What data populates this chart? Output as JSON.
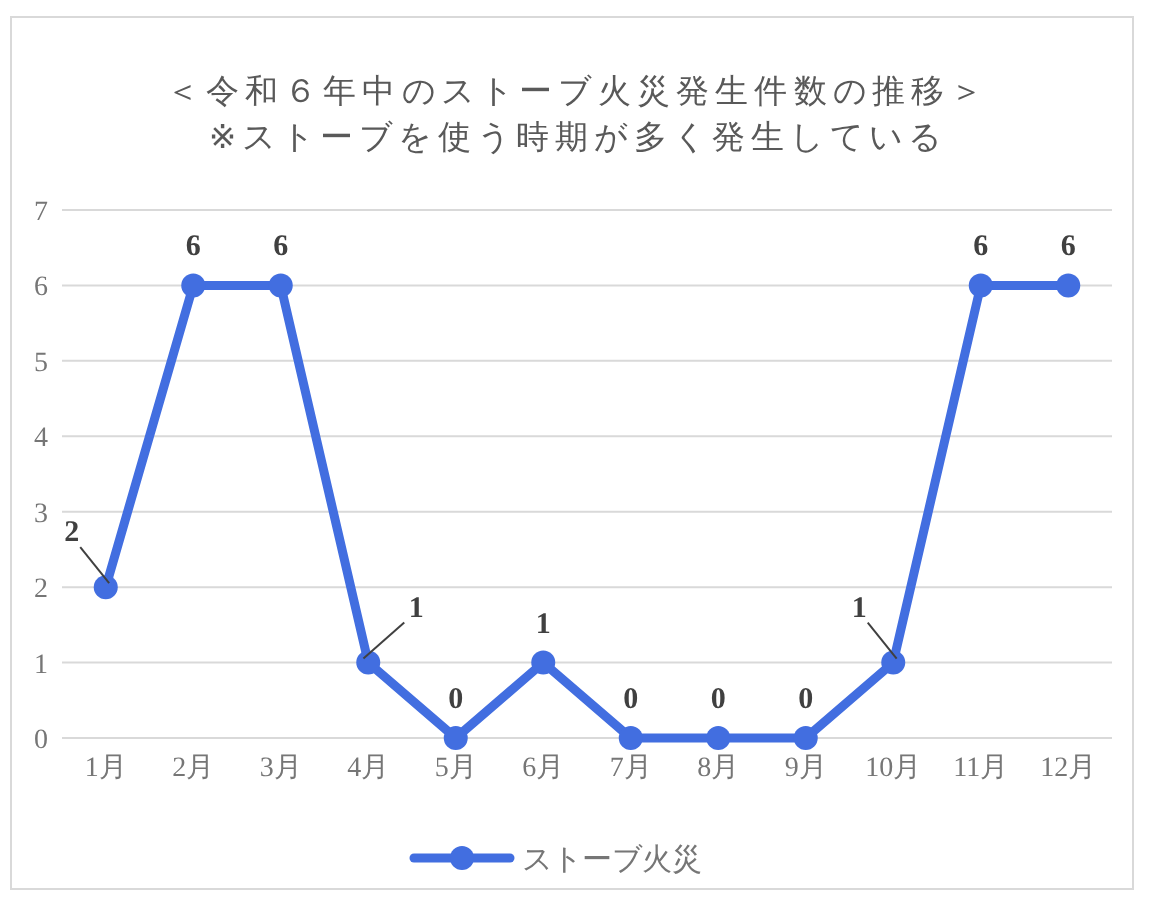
{
  "chart_data": {
    "type": "line",
    "title": "＜令和６年中のストーブ火災発生件数の推移＞",
    "subtitle": "※ストーブを使う時期が多く発生している",
    "categories": [
      "1月",
      "2月",
      "3月",
      "4月",
      "5月",
      "6月",
      "7月",
      "8月",
      "9月",
      "10月",
      "11月",
      "12月"
    ],
    "series": [
      {
        "name": "ストーブ火災",
        "color": "#426ee0",
        "values": [
          2,
          6,
          6,
          1,
          0,
          1,
          0,
          0,
          0,
          1,
          6,
          6
        ]
      }
    ],
    "ylim": [
      0,
      7
    ],
    "yticks": [
      0,
      1,
      2,
      3,
      4,
      5,
      6,
      7
    ],
    "grid": "y",
    "legend": "bottom",
    "marker": "circle",
    "line_style": "solid",
    "data_labels": true
  }
}
